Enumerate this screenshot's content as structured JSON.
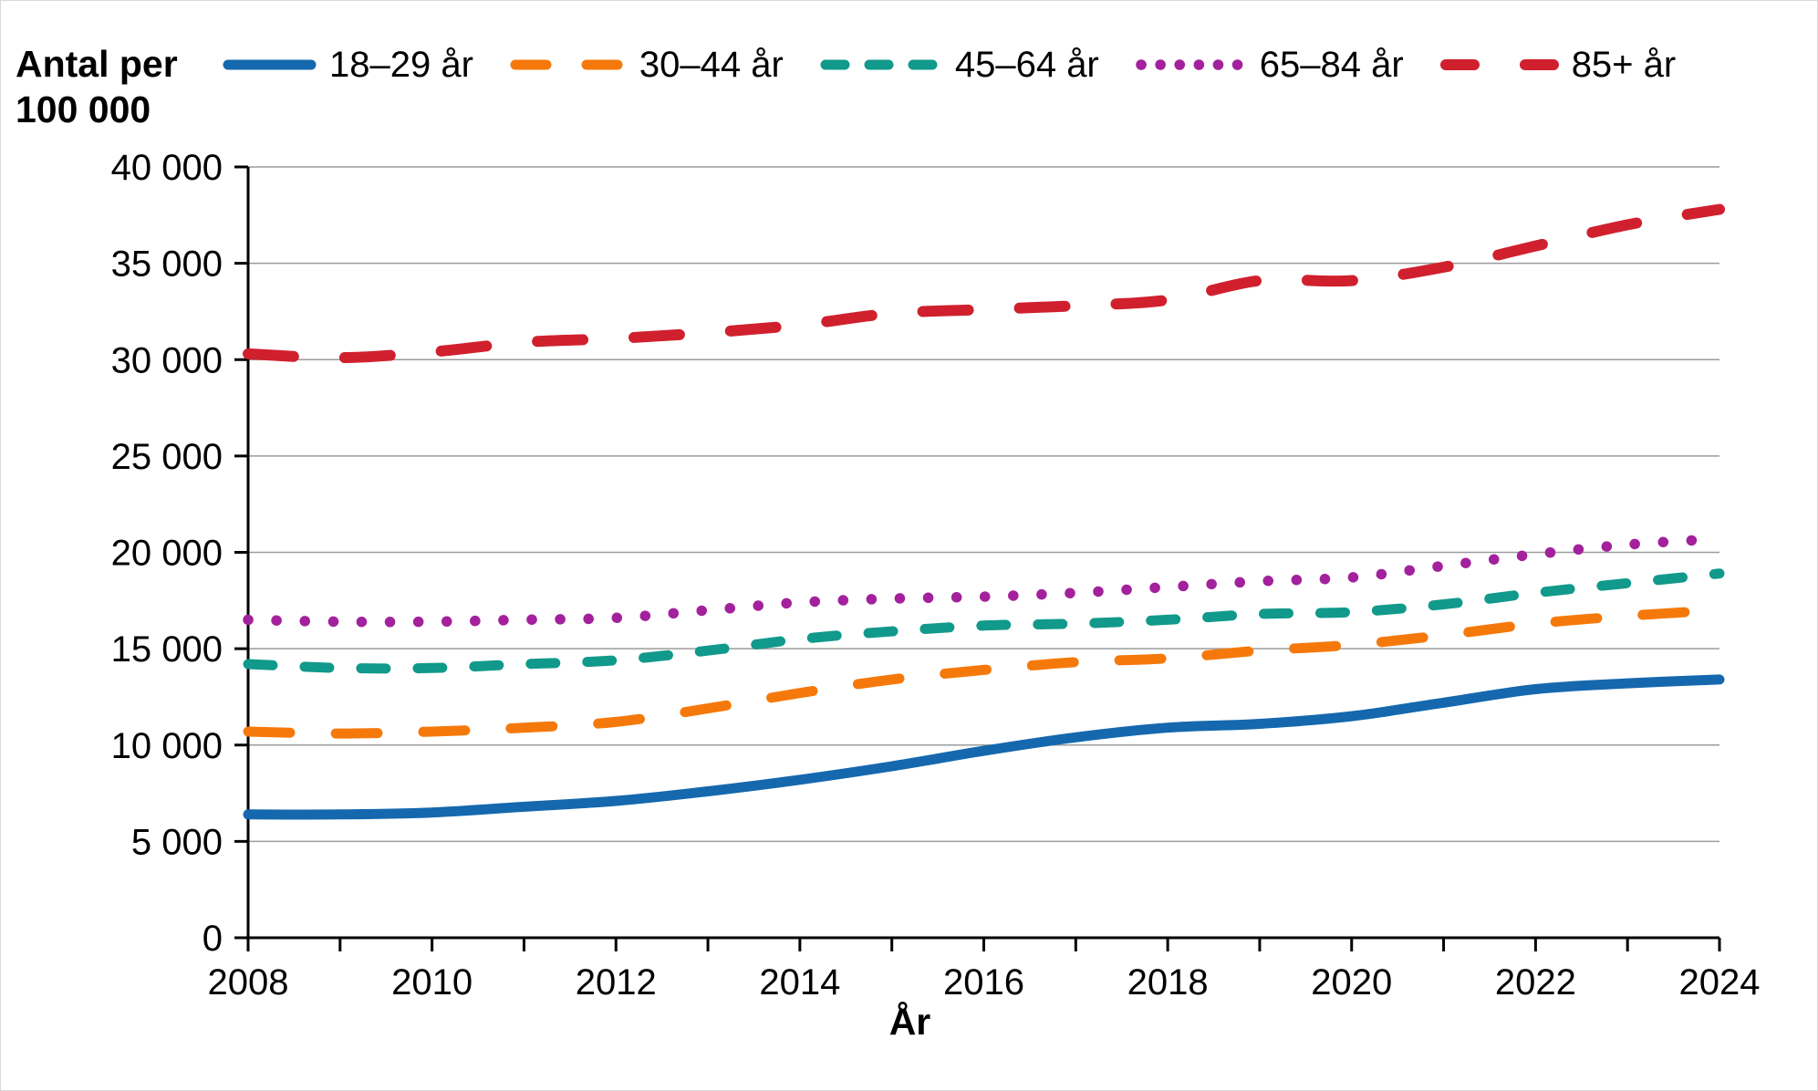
{
  "y_axis_title_line1": "Antal per",
  "y_axis_title_line2": "100 000",
  "chart_data": {
    "type": "line",
    "title": "",
    "xlabel": "År",
    "ylabel": "Antal per 100 000",
    "x": [
      2008,
      2009,
      2010,
      2011,
      2012,
      2013,
      2014,
      2015,
      2016,
      2017,
      2018,
      2019,
      2020,
      2021,
      2022,
      2023,
      2024
    ],
    "x_tick_labels": [
      "2008",
      "2010",
      "2012",
      "2014",
      "2016",
      "2018",
      "2020",
      "2022",
      "2024"
    ],
    "xlim": [
      2008,
      2024
    ],
    "y_ticks": [
      0,
      5000,
      10000,
      15000,
      20000,
      25000,
      30000,
      35000,
      40000
    ],
    "y_tick_labels": [
      "0",
      "5 000",
      "10 000",
      "15 000",
      "20 000",
      "25 000",
      "30 000",
      "35 000",
      "40 000"
    ],
    "ylim": [
      0,
      40000
    ],
    "grid": "horizontal",
    "gridline_color": "#9b9b9b",
    "axis_color": "#000000",
    "legend_position": "top",
    "series": [
      {
        "name": "18–29 år",
        "slug": "18-29",
        "color": "#1568ae",
        "line_style": "solid",
        "values": [
          6400,
          6400,
          6500,
          6800,
          7100,
          7600,
          8200,
          8900,
          9700,
          10400,
          10900,
          11100,
          11500,
          12200,
          12900,
          13200,
          13400
        ]
      },
      {
        "name": "30–44 år",
        "slug": "30-44",
        "color": "#f5790a",
        "line_style": "long-dash",
        "values": [
          10700,
          10600,
          10700,
          10900,
          11200,
          11900,
          12700,
          13400,
          13900,
          14300,
          14500,
          14900,
          15200,
          15700,
          16300,
          16700,
          17000
        ]
      },
      {
        "name": "45–64 år",
        "slug": "45-64",
        "color": "#11998b",
        "line_style": "dash",
        "values": [
          14200,
          14000,
          14000,
          14200,
          14400,
          14900,
          15500,
          15900,
          16200,
          16300,
          16500,
          16800,
          16900,
          17300,
          17900,
          18400,
          18900
        ]
      },
      {
        "name": "65–84 år",
        "slug": "65-84",
        "color": "#a3219c",
        "line_style": "dot",
        "values": [
          16500,
          16400,
          16400,
          16500,
          16600,
          17000,
          17400,
          17600,
          17700,
          17900,
          18200,
          18500,
          18700,
          19300,
          19900,
          20400,
          20700
        ]
      },
      {
        "name": "85+ år",
        "slug": "85-plus",
        "color": "#d0202e",
        "line_style": "long-dash-sparse",
        "values": [
          30300,
          30100,
          30400,
          30900,
          31100,
          31400,
          31800,
          32400,
          32600,
          32800,
          33100,
          34100,
          34100,
          34800,
          35900,
          37000,
          37800
        ]
      }
    ]
  }
}
